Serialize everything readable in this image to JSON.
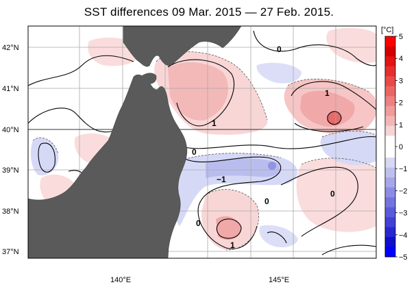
{
  "title": "SST differences 09 Mar. 2015 — 27 Feb. 2015.",
  "colorbar": {
    "unit_label": "[°C]",
    "ticks": [
      "5",
      "4",
      "3",
      "2",
      "1",
      "0",
      "−1",
      "−2",
      "−3",
      "−4",
      "−5"
    ],
    "min": -5,
    "max": 5,
    "warm_colors": [
      "#f6d4d4",
      "#f3b6b6",
      "#f19b9b",
      "#ee8080",
      "#eb6565",
      "#e84a4a",
      "#e52f2f",
      "#e21414",
      "#d40000",
      "#ff0000"
    ],
    "cool_colors": [
      "#d8d8f4",
      "#bfbfef",
      "#a6a6ea",
      "#8c8ce5",
      "#7373e0",
      "#5a5adb",
      "#4141d6",
      "#2828d1",
      "#0f0fcc",
      "#0000ff"
    ]
  },
  "axes": {
    "lat_labels": [
      "42°N",
      "41°N",
      "40°N",
      "39°N",
      "38°N",
      "37°N"
    ],
    "lon_labels": [
      "140°E",
      "145°E"
    ]
  },
  "contour_labels": [
    "0",
    "1",
    "1",
    "0",
    "−1",
    "0",
    "0",
    "0",
    "1"
  ],
  "colors": {
    "land": "#5a5a5a",
    "warm": "#f7c5c5",
    "cool": "#cfd3f3",
    "grid": "#9a9a9a"
  }
}
